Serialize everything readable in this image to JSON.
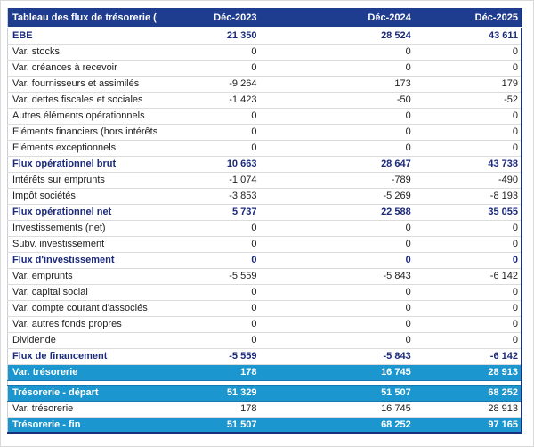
{
  "table": {
    "header": {
      "label": "Tableau des flux de trésorerie (€)",
      "columns": [
        "Déc-2023",
        "Déc-2024",
        "Déc-2025"
      ]
    },
    "rows": [
      {
        "label": "EBE",
        "values": [
          "21 350",
          "28 524",
          "43 611"
        ],
        "style": "bold"
      },
      {
        "label": "Var. stocks",
        "values": [
          "0",
          "0",
          "0"
        ],
        "style": "normal"
      },
      {
        "label": "Var. créances à recevoir",
        "values": [
          "0",
          "0",
          "0"
        ],
        "style": "normal"
      },
      {
        "label": "Var. fournisseurs et assimilés",
        "values": [
          "-9 264",
          "173",
          "179"
        ],
        "style": "normal"
      },
      {
        "label": "Var. dettes fiscales et sociales",
        "values": [
          "-1 423",
          "-50",
          "-52"
        ],
        "style": "normal"
      },
      {
        "label": "Autres éléments opérationnels",
        "values": [
          "0",
          "0",
          "0"
        ],
        "style": "normal"
      },
      {
        "label": "Eléments financiers (hors intérêts)",
        "values": [
          "0",
          "0",
          "0"
        ],
        "style": "normal"
      },
      {
        "label": "Eléments exceptionnels",
        "values": [
          "0",
          "0",
          "0"
        ],
        "style": "normal"
      },
      {
        "label": "Flux opérationnel brut",
        "values": [
          "10 663",
          "28 647",
          "43 738"
        ],
        "style": "bold"
      },
      {
        "label": "Intérêts sur emprunts",
        "values": [
          "-1 074",
          "-789",
          "-490"
        ],
        "style": "normal"
      },
      {
        "label": "Impôt sociétés",
        "values": [
          "-3 853",
          "-5 269",
          "-8 193"
        ],
        "style": "normal"
      },
      {
        "label": "Flux opérationnel net",
        "values": [
          "5 737",
          "22 588",
          "35 055"
        ],
        "style": "bold"
      },
      {
        "label": "Investissements (net)",
        "values": [
          "0",
          "0",
          "0"
        ],
        "style": "normal"
      },
      {
        "label": "Subv. investissement",
        "values": [
          "0",
          "0",
          "0"
        ],
        "style": "normal"
      },
      {
        "label": "Flux d'investissement",
        "values": [
          "0",
          "0",
          "0"
        ],
        "style": "bold"
      },
      {
        "label": "Var. emprunts",
        "values": [
          "-5 559",
          "-5 843",
          "-6 142"
        ],
        "style": "normal"
      },
      {
        "label": "Var. capital social",
        "values": [
          "0",
          "0",
          "0"
        ],
        "style": "normal"
      },
      {
        "label": "Var. compte courant d'associés",
        "values": [
          "0",
          "0",
          "0"
        ],
        "style": "normal"
      },
      {
        "label": "Var. autres fonds propres",
        "values": [
          "0",
          "0",
          "0"
        ],
        "style": "normal"
      },
      {
        "label": "Dividende",
        "values": [
          "0",
          "0",
          "0"
        ],
        "style": "normal"
      },
      {
        "label": "Flux de financement",
        "values": [
          "-5 559",
          "-5 843",
          "-6 142"
        ],
        "style": "bold"
      },
      {
        "label": "Var. trésorerie",
        "values": [
          "178",
          "16 745",
          "28 913"
        ],
        "style": "highlight"
      },
      {
        "label": "",
        "values": [
          "",
          "",
          ""
        ],
        "style": "spacer"
      },
      {
        "label": "Trésorerie - départ",
        "values": [
          "51 329",
          "51 507",
          "68 252"
        ],
        "style": "highlight"
      },
      {
        "label": "Var. trésorerie",
        "values": [
          "178",
          "16 745",
          "28 913"
        ],
        "style": "normal"
      },
      {
        "label": "Trésorerie - fin",
        "values": [
          "51 507",
          "68 252",
          "97 165"
        ],
        "style": "highlight"
      }
    ],
    "colors": {
      "header_bg": "#1e3d8f",
      "highlight_bg": "#1b96ce",
      "highlight_border": "#1878b3",
      "bold_text": "#1b2a7b",
      "normal_text": "#202020",
      "border_navy": "#19307c",
      "row_separator": "#dcdcdc"
    }
  }
}
